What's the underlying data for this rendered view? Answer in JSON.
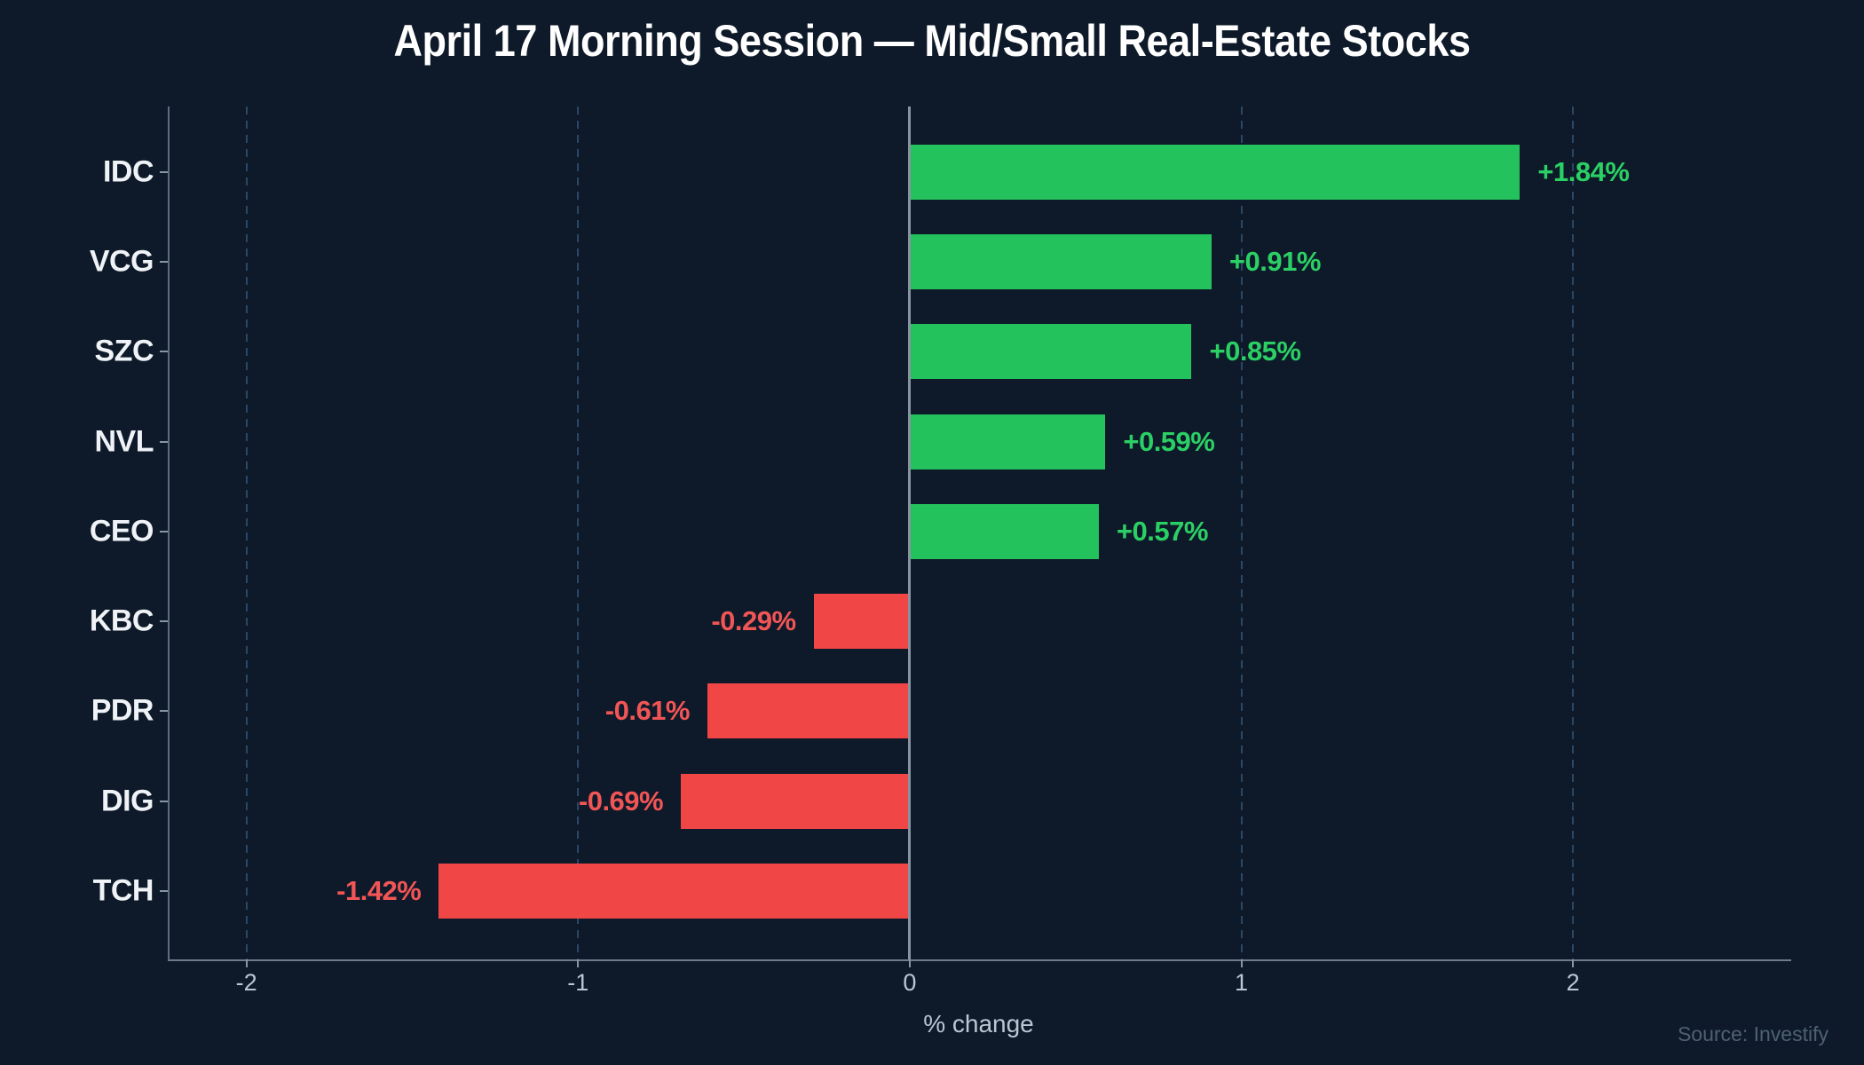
{
  "figure": {
    "title": "April 17 Morning Session — Mid/Small Real-Estate Stocks",
    "xlabel": "% change",
    "source": "Source: Investify"
  },
  "colors": {
    "background": "#0e1a29",
    "positive_bar": "#24c25d",
    "positive_label": "#2bd065",
    "negative_bar": "#f04646",
    "negative_label": "#f25555",
    "title_text": "#ffffff",
    "ticker_text": "#eff3f7",
    "tick_text": "#bac6d2",
    "grid_dashed": "#2b4766",
    "zero_line": "#8793a1",
    "spine": "#5c6d80",
    "source_text": "#4f6073"
  },
  "chart_data": {
    "type": "bar",
    "orientation": "horizontal",
    "title": "April 17 Morning Session — Mid/Small Real-Estate Stocks",
    "xlabel": "% change",
    "ylabel": "",
    "categories": [
      "IDC",
      "VCG",
      "SZC",
      "NVL",
      "CEO",
      "KBC",
      "PDR",
      "DIG",
      "TCH"
    ],
    "values": [
      1.84,
      0.91,
      0.85,
      0.59,
      0.57,
      -0.29,
      -0.61,
      -0.69,
      -1.42
    ],
    "bar_labels": [
      "+1.84%",
      "+0.91%",
      "+0.85%",
      "+0.59%",
      "+0.57%",
      "-0.29%",
      "-0.61%",
      "-0.69%",
      "-1.42%"
    ],
    "xticks": [
      -2,
      -1,
      0,
      1,
      2
    ],
    "xtick_labels": [
      "-2",
      "-1",
      "0",
      "1",
      "2"
    ],
    "xlim": [
      -2.232,
      2.658
    ],
    "grid": "vertical dashed gridlines at non-zero ticks, solid vertical line at 0, drawn behind/over bars",
    "legend": false,
    "annotation": "Source: Investify"
  }
}
